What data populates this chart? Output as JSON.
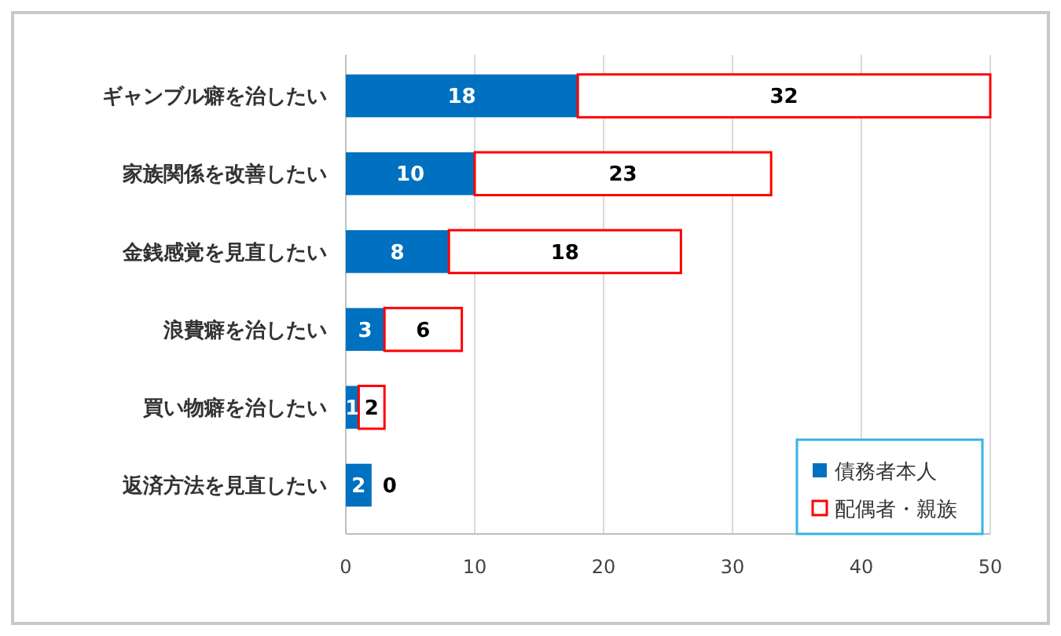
{
  "chart_data": {
    "type": "bar",
    "orientation": "horizontal",
    "stacked": true,
    "categories": [
      "ギャンブル癖を治したい",
      "家族関係を改善したい",
      "金銭感覚を見直したい",
      "浪費癖を治したい",
      "買い物癖を治したい",
      "返済方法を見直したい"
    ],
    "series": [
      {
        "name": "債務者本人",
        "color": "#0070c0",
        "values": [
          18,
          10,
          8,
          3,
          1,
          2
        ]
      },
      {
        "name": "配偶者・親族",
        "color": "#ff0000",
        "values": [
          32,
          23,
          18,
          6,
          2,
          0
        ]
      }
    ],
    "xlim": [
      0,
      50
    ],
    "xticks": [
      0,
      10,
      20,
      30,
      40,
      50
    ],
    "grid": "x",
    "legend": "bottom right",
    "data_labels": true
  }
}
